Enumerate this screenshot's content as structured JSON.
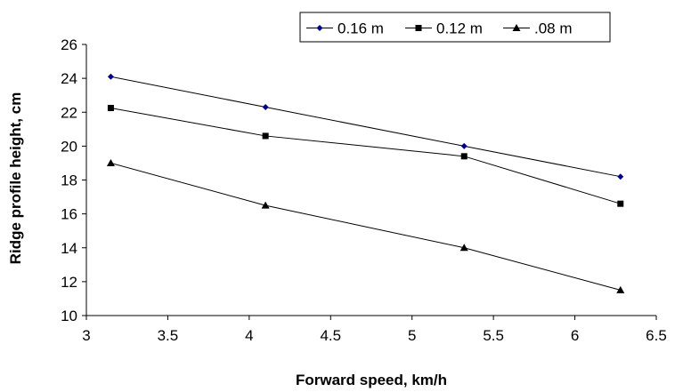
{
  "chart_data": {
    "type": "line",
    "title": "",
    "xlabel": "Forward speed, km/h",
    "ylabel": "Ridge profile height, cm",
    "x": [
      3.15,
      4.1,
      5.32,
      6.28
    ],
    "xlim": [
      3,
      6.5
    ],
    "ylim": [
      10,
      26
    ],
    "xticks": [
      "3",
      "3.5",
      "4",
      "4.5",
      "5",
      "5.5",
      "6",
      "6.5"
    ],
    "yticks": [
      "10",
      "12",
      "14",
      "16",
      "18",
      "20",
      "22",
      "24",
      "26"
    ],
    "grid": false,
    "legend_position": "top",
    "series": [
      {
        "name": "0.16 m",
        "marker": "diamond",
        "color": "#00008B",
        "values": [
          24.1,
          22.3,
          20.0,
          18.2
        ]
      },
      {
        "name": "0.12 m",
        "marker": "square",
        "color": "#000000",
        "values": [
          22.25,
          20.6,
          19.4,
          16.6
        ]
      },
      {
        "name": ".08 m",
        "marker": "triangle",
        "color": "#000000",
        "values": [
          19.0,
          16.5,
          14.0,
          11.5
        ]
      }
    ]
  }
}
